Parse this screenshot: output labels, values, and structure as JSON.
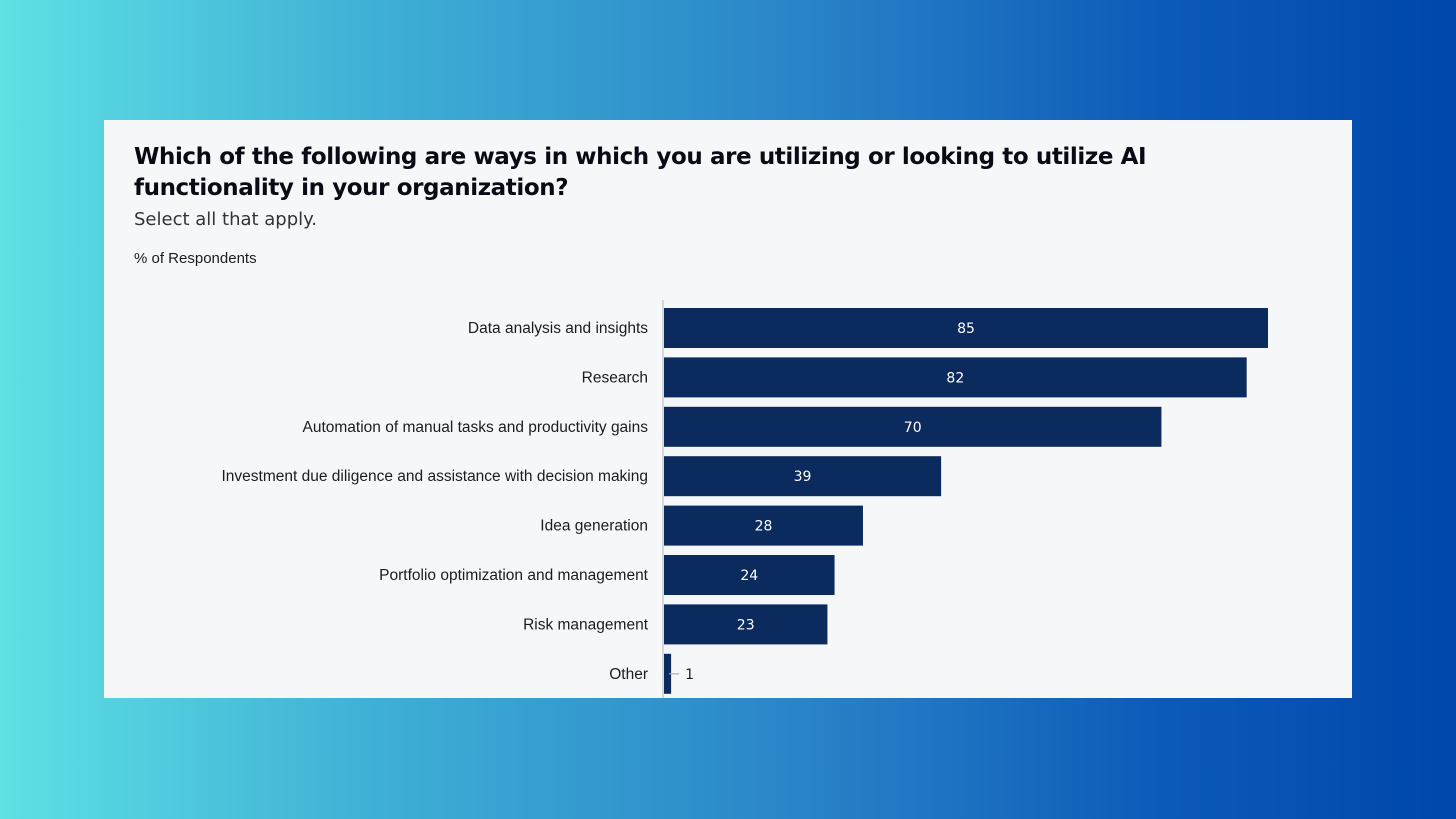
{
  "chart_data": {
    "type": "bar",
    "orientation": "horizontal",
    "title": "Which of the following are ways in which you are utilizing or looking to utilize AI functionality in your organization?",
    "subtitle": "Select all that apply.",
    "unit_label": "% of Respondents",
    "categories": [
      "Data analysis and insights",
      "Research",
      "Automation of manual tasks and productivity gains",
      "Investment due diligence and assistance with decision making",
      "Idea generation",
      "Portfolio optimization and management",
      "Risk management",
      "Other"
    ],
    "values": [
      85,
      82,
      70,
      39,
      28,
      24,
      23,
      1
    ],
    "xlim": [
      0,
      85
    ],
    "grid": false,
    "legend": "none",
    "bar_color": "#0b2a5e",
    "axis_color": "#c8cbd0"
  }
}
